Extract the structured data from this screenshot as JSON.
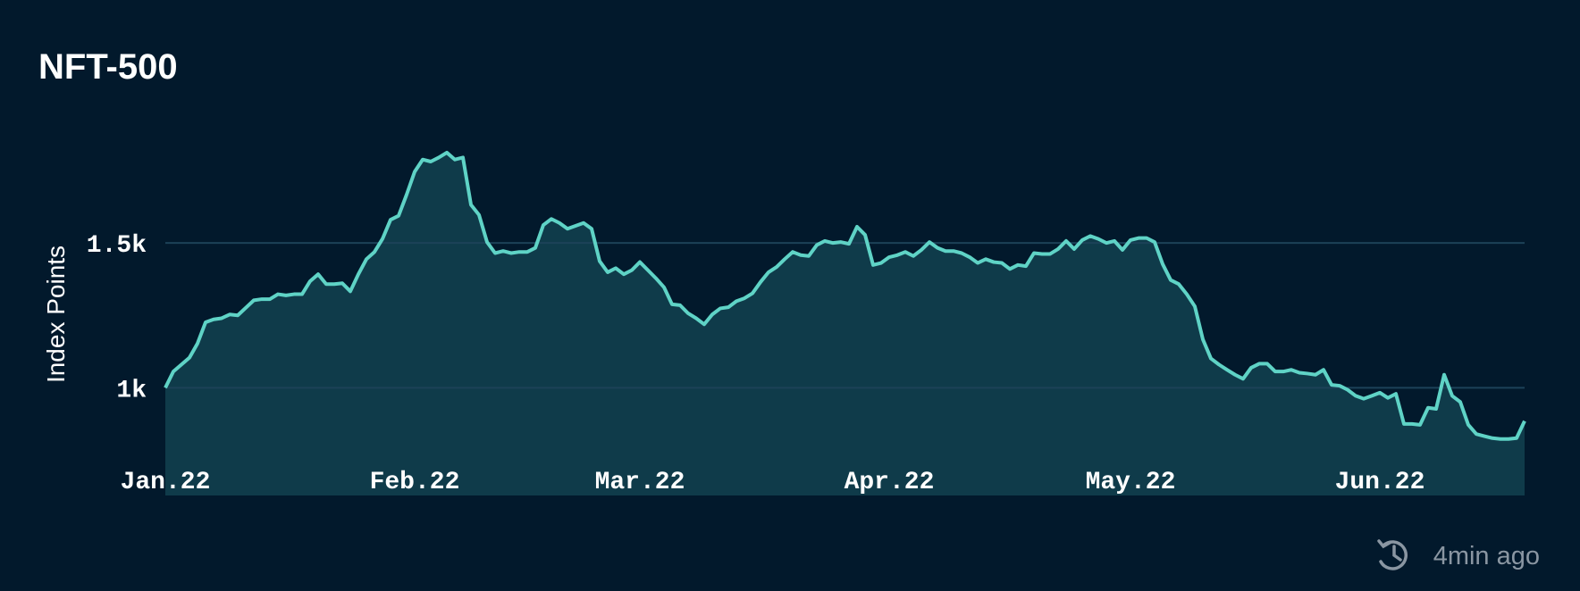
{
  "chart_data": {
    "type": "area",
    "title": "NFT-500",
    "y_label": "Index Points",
    "updated": "4min ago",
    "x": [
      0,
      1,
      2,
      3,
      4,
      5,
      6,
      7,
      8,
      9,
      10,
      11,
      12,
      13,
      14,
      15,
      16,
      17,
      18,
      19,
      20,
      21,
      22,
      23,
      24,
      25,
      26,
      27,
      28,
      29,
      30,
      31,
      32,
      33,
      34,
      35,
      36,
      37,
      38,
      39,
      40,
      41,
      42,
      43,
      44,
      45,
      46,
      47,
      48,
      49,
      50,
      51,
      52,
      53,
      54,
      55,
      56,
      57,
      58,
      59,
      60,
      61,
      62,
      63,
      64,
      65,
      66,
      67,
      68,
      69,
      70,
      71,
      72,
      73,
      74,
      75,
      76,
      77,
      78,
      79,
      80,
      81,
      82,
      83,
      84,
      85,
      86,
      87,
      88,
      89,
      90,
      91,
      92,
      93,
      94,
      95,
      96,
      97,
      98,
      99,
      100,
      101,
      102,
      103,
      104,
      105,
      106,
      107,
      108,
      109,
      110,
      111,
      112,
      113,
      114,
      115,
      116,
      117,
      118,
      119,
      120,
      121,
      122,
      123,
      124,
      125,
      126,
      127,
      128,
      129,
      130,
      131,
      132,
      133,
      134,
      135,
      136,
      137,
      138,
      139,
      140,
      141,
      142,
      143,
      144,
      145,
      146,
      147,
      148,
      149,
      150,
      151,
      152,
      153,
      154,
      155,
      156,
      157,
      158,
      159,
      160,
      161,
      162,
      163,
      164,
      165,
      166,
      167,
      168,
      169
    ],
    "series": [
      {
        "name": "NFT-500",
        "color": "#5fd3c6",
        "fill": "#0f3b4a",
        "values": [
          1000,
          1056,
          1080,
          1104,
          1153,
          1226,
          1236,
          1240,
          1253,
          1250,
          1276,
          1302,
          1306,
          1306,
          1323,
          1319,
          1323,
          1323,
          1368,
          1392,
          1358,
          1358,
          1361,
          1333,
          1392,
          1444,
          1469,
          1514,
          1580,
          1594,
          1667,
          1746,
          1788,
          1781,
          1795,
          1812,
          1788,
          1795,
          1632,
          1597,
          1503,
          1465,
          1472,
          1465,
          1469,
          1469,
          1483,
          1562,
          1583,
          1569,
          1549,
          1559,
          1569,
          1549,
          1437,
          1399,
          1413,
          1392,
          1406,
          1434,
          1406,
          1378,
          1347,
          1288,
          1285,
          1257,
          1240,
          1219,
          1253,
          1274,
          1278,
          1299,
          1309,
          1326,
          1365,
          1399,
          1417,
          1444,
          1469,
          1458,
          1455,
          1493,
          1507,
          1500,
          1503,
          1497,
          1556,
          1528,
          1424,
          1431,
          1451,
          1458,
          1469,
          1455,
          1476,
          1503,
          1483,
          1472,
          1472,
          1465,
          1451,
          1431,
          1444,
          1434,
          1431,
          1410,
          1424,
          1420,
          1465,
          1462,
          1462,
          1479,
          1507,
          1479,
          1510,
          1524,
          1514,
          1500,
          1507,
          1476,
          1510,
          1517,
          1517,
          1503,
          1427,
          1372,
          1358,
          1323,
          1281,
          1167,
          1101,
          1080,
          1062,
          1045,
          1031,
          1069,
          1083,
          1083,
          1056,
          1056,
          1062,
          1052,
          1049,
          1045,
          1062,
          1010,
          1007,
          993,
          972,
          962,
          972,
          983,
          965,
          979,
          875,
          875,
          872,
          931,
          927,
          1045,
          972,
          951,
          872,
          840,
          833,
          826,
          823,
          823,
          826,
          885
        ]
      }
    ],
    "xlim": [
      0,
      169
    ],
    "xticks": [
      {
        "value": 0,
        "label": "Jan.22"
      },
      {
        "value": 31,
        "label": "Feb.22"
      },
      {
        "value": 59,
        "label": "Mar.22"
      },
      {
        "value": 90,
        "label": "Apr.22"
      },
      {
        "value": 120,
        "label": "May.22"
      },
      {
        "value": 151,
        "label": "Jun.22"
      }
    ],
    "ylim": [
      628,
      1900
    ],
    "yticks": [
      {
        "value": 1000,
        "label": "1k"
      },
      {
        "value": 1500,
        "label": "1.5k"
      }
    ],
    "grid": true,
    "grid_color": "#1c4258",
    "background": "#02192c"
  }
}
